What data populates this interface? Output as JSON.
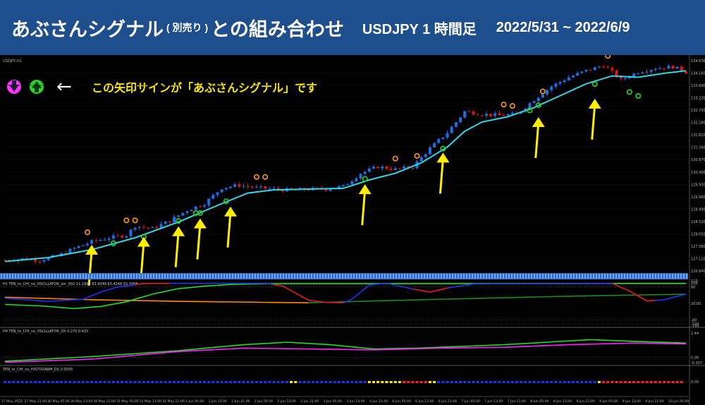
{
  "header": {
    "title_main": "あぶさんシグナル",
    "title_sub": "( 別売り )",
    "title_tail": "との組み合わせ",
    "pair_tf": "USDJPY 1 時間足",
    "date_range": "2022/5/31 ~ 2022/6/9"
  },
  "annotation": {
    "text": "この矢印サインが「あぶさんシグナル」です",
    "pointer": "←",
    "icons": [
      "down-arrow-signal-icon",
      "up-arrow-signal-icon"
    ]
  },
  "colors": {
    "header_bg": "#1f4e8c",
    "bull": "#1e6fe6",
    "bear": "#e01818",
    "ma": "#33d6e6",
    "annotation": "#ffee00",
    "signal_up": "#2bd42b",
    "signal_down": "#ff9a1a",
    "osc_blue": "#2233ee",
    "osc_red": "#e01818",
    "osc_green": "#22dd22",
    "osc_orange": "#ff8a00",
    "dx_magenta": "#ff22ff",
    "dx_green": "#22dd22",
    "hist_blue": "#2233ee",
    "hist_yellow": "#ffee00",
    "hist_red": "#ff2222"
  },
  "chart_data": {
    "type": "candlestick",
    "symbol_label": "USDJPY,H1",
    "ylim": [
      126.64,
      134.63
    ],
    "y_ticks": [
      "134.630",
      "134.160",
      "133.690",
      "133.220",
      "132.750",
      "132.280",
      "131.810",
      "131.340",
      "130.870",
      "130.400",
      "129.930",
      "129.460",
      "128.990",
      "128.520",
      "128.050",
      "127.580",
      "127.110",
      "126.640"
    ],
    "x_ticks": [
      "27 May 2022",
      "27 May 21:00",
      "30 May 05:00",
      "30 May 13:00",
      "30 May 21:00",
      "31 May 05:00",
      "31 May 13:00",
      "31 May 21:00",
      "1 Jun 05:00",
      "1 Jun 13:00",
      "1 Jun 21:00",
      "2 Jun 05:00",
      "2 Jun 13:00",
      "2 Jun 21:00",
      "3 Jun 05:00",
      "3 Jun 13:00",
      "3 Jun 21:00",
      "6 Jun 05:00",
      "6 Jun 13:00",
      "6 Jun 21:00",
      "7 Jun 05:00",
      "7 Jun 13:00",
      "7 Jun 21:00",
      "8 Jun 05:00",
      "8 Jun 13:00",
      "8 Jun 21:00",
      "9 Jun 05:00",
      "9 Jun 13:00",
      "9 Jun 21:00",
      "10 Jun 05:00"
    ],
    "close_path": [
      [
        0,
        127.05
      ],
      [
        4,
        127.1
      ],
      [
        8,
        127.05
      ],
      [
        12,
        127.2
      ],
      [
        16,
        127.5
      ],
      [
        20,
        127.75
      ],
      [
        24,
        127.9
      ],
      [
        28,
        128.0
      ],
      [
        30,
        128.35
      ],
      [
        34,
        128.25
      ],
      [
        38,
        128.55
      ],
      [
        42,
        128.95
      ],
      [
        46,
        129.2
      ],
      [
        50,
        129.8
      ],
      [
        54,
        129.9
      ],
      [
        58,
        129.8
      ],
      [
        62,
        129.75
      ],
      [
        66,
        129.7
      ],
      [
        70,
        129.75
      ],
      [
        74,
        129.75
      ],
      [
        78,
        129.85
      ],
      [
        82,
        130.35
      ],
      [
        86,
        130.6
      ],
      [
        90,
        130.5
      ],
      [
        94,
        130.6
      ],
      [
        98,
        131.3
      ],
      [
        102,
        131.9
      ],
      [
        106,
        132.7
      ],
      [
        110,
        132.6
      ],
      [
        114,
        132.55
      ],
      [
        118,
        132.6
      ],
      [
        122,
        133.15
      ],
      [
        126,
        133.65
      ],
      [
        130,
        134.0
      ],
      [
        134,
        134.25
      ],
      [
        138,
        134.45
      ],
      [
        140,
        134.2
      ],
      [
        142,
        133.9
      ],
      [
        146,
        134.2
      ],
      [
        150,
        134.35
      ],
      [
        154,
        134.4
      ],
      [
        157,
        134.2
      ]
    ],
    "ma_path": [
      [
        0,
        127.0
      ],
      [
        10,
        127.15
      ],
      [
        20,
        127.45
      ],
      [
        30,
        127.9
      ],
      [
        40,
        128.5
      ],
      [
        50,
        129.2
      ],
      [
        56,
        129.6
      ],
      [
        62,
        129.72
      ],
      [
        70,
        129.75
      ],
      [
        78,
        129.78
      ],
      [
        84,
        130.1
      ],
      [
        90,
        130.35
      ],
      [
        96,
        130.75
      ],
      [
        102,
        131.35
      ],
      [
        106,
        131.95
      ],
      [
        110,
        132.3
      ],
      [
        116,
        132.5
      ],
      [
        122,
        132.85
      ],
      [
        128,
        133.3
      ],
      [
        134,
        133.75
      ],
      [
        140,
        134.05
      ],
      [
        146,
        134.0
      ],
      [
        152,
        134.15
      ],
      [
        157,
        134.25
      ]
    ],
    "buy_signals": [
      {
        "bar": 25,
        "price": 127.85
      },
      {
        "bar": 32,
        "price": 128.1
      },
      {
        "bar": 40,
        "price": 128.7
      },
      {
        "bar": 44,
        "price": 129.0
      },
      {
        "bar": 45,
        "price": 129.0
      },
      {
        "bar": 51,
        "price": 129.45
      },
      {
        "bar": 83,
        "price": 130.3
      },
      {
        "bar": 101,
        "price": 131.45
      },
      {
        "bar": 121,
        "price": 132.9
      },
      {
        "bar": 123,
        "price": 133.1
      },
      {
        "bar": 136,
        "price": 133.9
      },
      {
        "bar": 144,
        "price": 133.6
      },
      {
        "bar": 146,
        "price": 133.45
      }
    ],
    "sell_signals": [
      {
        "bar": 19,
        "price": 127.95
      },
      {
        "bar": 28,
        "price": 128.4
      },
      {
        "bar": 30,
        "price": 128.4
      },
      {
        "bar": 58,
        "price": 130.05
      },
      {
        "bar": 60,
        "price": 130.05
      },
      {
        "bar": 90,
        "price": 130.75
      },
      {
        "bar": 95,
        "price": 130.85
      },
      {
        "bar": 115,
        "price": 132.8
      },
      {
        "bar": 117,
        "price": 132.75
      },
      {
        "bar": 124,
        "price": 133.3
      },
      {
        "bar": 139,
        "price": 134.65
      }
    ],
    "yellow_arrows": [
      {
        "bar": 20,
        "price": 127.85
      },
      {
        "bar": 32,
        "price": 128.15
      },
      {
        "bar": 40,
        "price": 128.55
      },
      {
        "bar": 45,
        "price": 128.85
      },
      {
        "bar": 52,
        "price": 129.3
      },
      {
        "bar": 83,
        "price": 130.15
      },
      {
        "bar": 101,
        "price": 131.35
      },
      {
        "bar": 123,
        "price": 132.7
      },
      {
        "bar": 136,
        "price": 133.4
      }
    ],
    "panels": [
      {
        "label": "H1 TEN_to_CHI_no_OSCILLATOR_ver_002 11.1998 83.4248 83.4248 93.3988",
        "y_ticks": [
          "110",
          "100",
          "80",
          "20.00",
          "-80",
          "-100",
          "-110"
        ],
        "blue_red": [
          [
            0,
            25
          ],
          [
            10,
            10
          ],
          [
            18,
            20
          ],
          [
            22,
            55
          ],
          [
            26,
            80
          ],
          [
            32,
            97
          ],
          [
            60,
            98
          ],
          [
            64,
            85
          ],
          [
            70,
            15
          ],
          [
            74,
            5
          ],
          [
            78,
            3
          ],
          [
            80,
            20
          ],
          [
            84,
            90
          ],
          [
            88,
            98
          ],
          [
            94,
            70
          ],
          [
            98,
            55
          ],
          [
            102,
            75
          ],
          [
            108,
            95
          ],
          [
            140,
            97
          ],
          [
            144,
            60
          ],
          [
            148,
            12
          ],
          [
            152,
            18
          ],
          [
            157,
            45
          ]
        ],
        "red_ranges": [
          [
            30,
            38
          ],
          [
            62,
            78
          ],
          [
            94,
            102
          ],
          [
            140,
            150
          ]
        ],
        "green": [
          [
            0,
            -5
          ],
          [
            8,
            -12
          ],
          [
            16,
            -25
          ],
          [
            22,
            -15
          ],
          [
            28,
            8
          ],
          [
            34,
            45
          ],
          [
            40,
            72
          ],
          [
            46,
            84
          ],
          [
            52,
            92
          ],
          [
            60,
            96
          ],
          [
            157,
            97
          ]
        ],
        "orange": [
          [
            0,
            30
          ],
          [
            20,
            18
          ],
          [
            40,
            10
          ],
          [
            60,
            5
          ],
          [
            70,
            3
          ]
        ],
        "dark_green": [
          [
            70,
            3
          ],
          [
            100,
            20
          ],
          [
            130,
            35
          ],
          [
            157,
            45
          ]
        ]
      },
      {
        "label": "H4 TEN_to_CHI_no_OSCILLATOR_DX 0.270 0.420",
        "y_ticks": [
          "1.44",
          "0.00",
          "-0.307"
        ],
        "magenta": [
          [
            0,
            -0.28
          ],
          [
            20,
            -0.1
          ],
          [
            40,
            0.35
          ],
          [
            55,
            0.55
          ],
          [
            70,
            0.5
          ],
          [
            85,
            0.45
          ],
          [
            100,
            0.55
          ],
          [
            115,
            0.6
          ],
          [
            130,
            0.75
          ],
          [
            145,
            0.85
          ],
          [
            157,
            0.8
          ]
        ],
        "green": [
          [
            0,
            -0.22
          ],
          [
            20,
            0.05
          ],
          [
            40,
            0.4
          ],
          [
            55,
            0.75
          ],
          [
            65,
            0.9
          ],
          [
            75,
            0.75
          ],
          [
            85,
            0.5
          ],
          [
            95,
            0.55
          ],
          [
            105,
            0.65
          ],
          [
            115,
            0.75
          ],
          [
            125,
            0.9
          ],
          [
            135,
            1.05
          ],
          [
            145,
            0.95
          ],
          [
            157,
            0.85
          ]
        ]
      },
      {
        "label": "TEN_to_CHI_no_HISTOGRAM_DX 0.0000",
        "y_ticks": [
          "0.00"
        ],
        "segments": [
          {
            "from": 0,
            "to": 66,
            "color": "blue"
          },
          {
            "from": 66,
            "to": 68,
            "color": "yellow"
          },
          {
            "from": 68,
            "to": 84,
            "color": "blue"
          },
          {
            "from": 84,
            "to": 92,
            "color": "yellow"
          },
          {
            "from": 92,
            "to": 98,
            "color": "red"
          },
          {
            "from": 98,
            "to": 100,
            "color": "yellow"
          },
          {
            "from": 100,
            "to": 137,
            "color": "blue"
          },
          {
            "from": 137,
            "to": 138,
            "color": "yellow"
          },
          {
            "from": 138,
            "to": 157,
            "color": "red"
          }
        ]
      }
    ]
  }
}
